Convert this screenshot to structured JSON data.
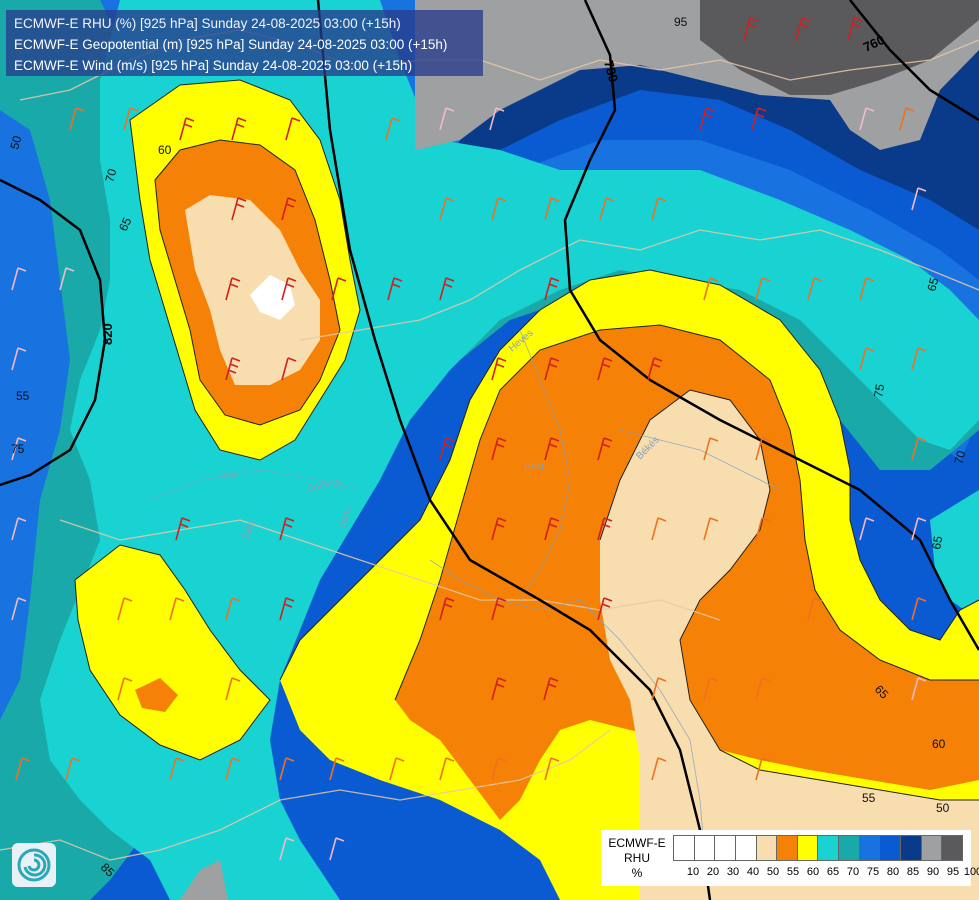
{
  "header": {
    "line1": "ECMWF-E RHU (%) [925 hPa] Sunday 24-08-2025 03:00 (+15h)",
    "line2": "ECMWF-E Geopotential (m) [925 hPa] Sunday 24-08-2025 03:00 (+15h)",
    "line3": "ECMWF-E Wind (m/s) [925 hPa] Sunday 24-08-2025 03:00 (+15h)"
  },
  "legend": {
    "title_line1": "ECMWF-E",
    "title_line2": "RHU",
    "title_line3": "%",
    "ticks": [
      "10",
      "20",
      "30",
      "40",
      "50",
      "55",
      "60",
      "65",
      "70",
      "75",
      "80",
      "85",
      "90",
      "95",
      "100"
    ],
    "colors": [
      "#ffffff",
      "#ffffff",
      "#ffffff",
      "#ffffff",
      "#f8ddaf",
      "#f58206",
      "#ffff00",
      "#19d2d2",
      "#1aa9a9",
      "#1873e0",
      "#0a5ad2",
      "#0a3a8a",
      "#9fa0a2",
      "#5a5a5c"
    ]
  },
  "colors": {
    "rhu_50": "#f8ddaf",
    "rhu_55": "#f58206",
    "rhu_60": "#ffff00",
    "rhu_65": "#19d2d2",
    "rhu_70": "#1aa9a9",
    "rhu_75": "#1873e0",
    "rhu_80": "#0a5ad2",
    "rhu_85": "#0a3a8a",
    "rhu_90": "#9fa0a2",
    "rhu_95": "#5a5a5c"
  },
  "geopotential_labels": [
    "780",
    "760",
    "820"
  ],
  "contour_labels": [
    "95",
    "60",
    "70",
    "65",
    "50",
    "75",
    "55",
    "65",
    "70",
    "75",
    "65",
    "65",
    "60",
    "55",
    "50",
    "85"
  ],
  "place_labels": [
    "Heves",
    "Pest",
    "Békés",
    "Vas",
    "Zala",
    "Somogy",
    "Tolna"
  ],
  "logo_icon": "ecmwf-swirl-icon"
}
